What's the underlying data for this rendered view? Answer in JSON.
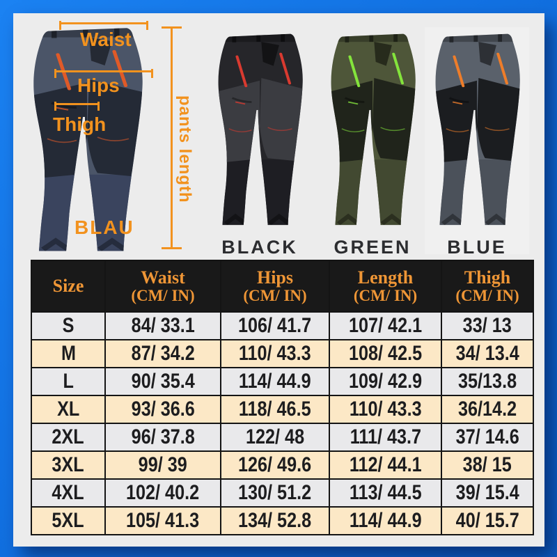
{
  "frame": {
    "border_color": "#1272e2",
    "canvas_bg": "#ececec"
  },
  "measure_annotations": {
    "waist": "Waist",
    "hips": "Hips",
    "thigh": "Thigh",
    "pants_length": "pants length",
    "color_name": "BLAU",
    "accent_color": "#f2921e"
  },
  "annotated_pants": {
    "main": "#4b5568",
    "panel": "#242a36",
    "shade": "#3a445e",
    "accent": "#e05a28"
  },
  "variants": [
    {
      "label": "BLACK",
      "pants": {
        "main": "#26262a",
        "panel": "#3b3c41",
        "shade": "#1e1e23",
        "accent": "#d93a30"
      }
    },
    {
      "label": "GREEN",
      "pants": {
        "main": "#4e5639",
        "panel": "#20241b",
        "shade": "#424931",
        "accent": "#84e43c"
      }
    },
    {
      "label": "BLUE",
      "pants": {
        "main": "#5a616b",
        "panel": "#1b1d20",
        "shade": "#4b515a",
        "accent": "#ee7d2a"
      }
    }
  ],
  "chart_data": {
    "type": "table",
    "columns": [
      {
        "title": "Size",
        "sub": ""
      },
      {
        "title": "Waist",
        "sub": "(CM/ IN)"
      },
      {
        "title": "Hips",
        "sub": "(CM/ IN)"
      },
      {
        "title": "Length",
        "sub": "(CM/ IN)"
      },
      {
        "title": "Thigh",
        "sub": "(CM/ IN)"
      }
    ],
    "rows": [
      [
        "S",
        "84/ 33.1",
        "106/ 41.7",
        "107/ 42.1",
        "33/ 13"
      ],
      [
        "M",
        "87/ 34.2",
        "110/ 43.3",
        "108/ 42.5",
        "34/ 13.4"
      ],
      [
        "L",
        "90/ 35.4",
        "114/ 44.9",
        "109/ 42.9",
        "35/13.8"
      ],
      [
        "XL",
        "93/ 36.6",
        "118/ 46.5",
        "110/ 43.3",
        "36/14.2"
      ],
      [
        "2XL",
        "96/ 37.8",
        "122/ 48",
        "111/ 43.7",
        "37/ 14.6"
      ],
      [
        "3XL",
        "99/ 39",
        "126/ 49.6",
        "112/ 44.1",
        "38/ 15"
      ],
      [
        "4XL",
        "102/ 40.2",
        "130/ 51.2",
        "113/ 44.5",
        "39/ 15.4"
      ],
      [
        "5XL",
        "105/ 41.3",
        "134/ 52.8",
        "114/ 44.9",
        "40/ 15.7"
      ]
    ],
    "header_bg": "#191919",
    "header_text_color": "#ef9636",
    "row_alt_colors": [
      "#e9e9eb",
      "#fce8c6"
    ]
  }
}
